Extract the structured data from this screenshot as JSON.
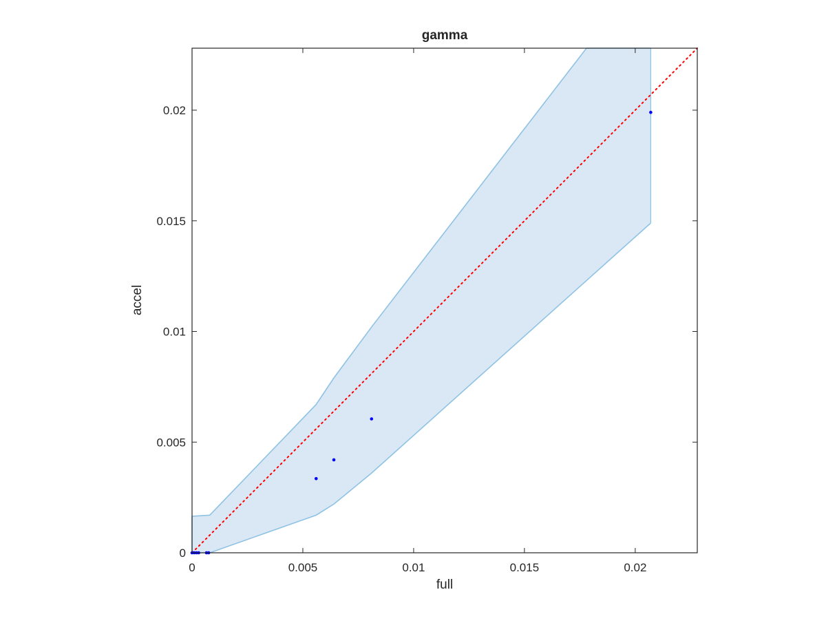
{
  "chart_data": {
    "type": "scatter",
    "title": "gamma",
    "xlabel": "full",
    "ylabel": "accel",
    "xlim": [
      0,
      0.0228
    ],
    "ylim": [
      0,
      0.0228
    ],
    "xticks": [
      0,
      0.005,
      0.01,
      0.015,
      0.02
    ],
    "xtick_labels": [
      "0",
      "0.005",
      "0.01",
      "0.015",
      "0.02"
    ],
    "yticks": [
      0,
      0.005,
      0.01,
      0.015,
      0.02
    ],
    "ytick_labels": [
      "0",
      "0.005",
      "0.01",
      "0.015",
      "0.02"
    ],
    "grid": false,
    "series": [
      {
        "type": "scatter",
        "color": "#0000ff",
        "x": [
          0.0,
          0.0001,
          0.0002,
          0.0003,
          0.00065,
          0.00075,
          0.0056,
          0.0064,
          0.0081,
          0.0207
        ],
        "y": [
          0.0,
          0.0,
          0.0,
          0.0,
          0.0,
          0.0,
          0.00335,
          0.0042,
          0.00605,
          0.0199
        ]
      },
      {
        "type": "line",
        "style": "dotted",
        "color": "#ff0000",
        "x": [
          0,
          0.0228
        ],
        "y": [
          0,
          0.0228
        ]
      },
      {
        "type": "band",
        "color": "#dae8f5",
        "edge_color": "#8ec2e3",
        "x": [
          0.0,
          0.0008,
          0.0056,
          0.0064,
          0.0081,
          0.0178,
          0.0207
        ],
        "upper": [
          0.00165,
          0.0017,
          0.0067,
          0.0079,
          0.0102,
          0.0228,
          0.0228
        ],
        "lower": [
          0.0,
          0.0,
          0.0017,
          0.0022,
          0.0036,
          0.0123,
          0.0149
        ]
      }
    ]
  }
}
